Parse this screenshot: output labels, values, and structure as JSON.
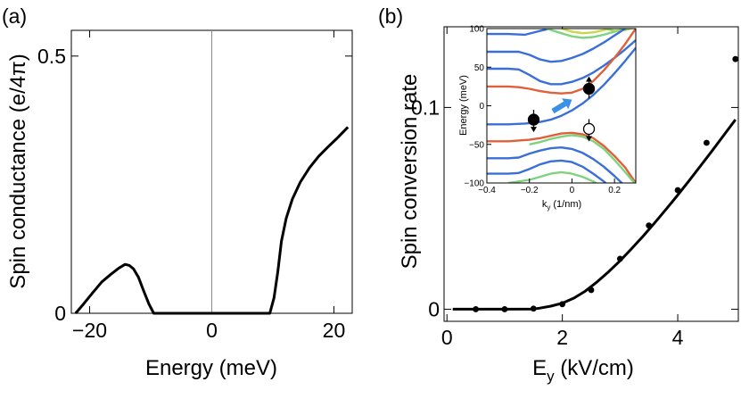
{
  "panels": {
    "a": {
      "label": "(a)"
    },
    "b": {
      "label": "(b)"
    }
  },
  "chart_data": [
    {
      "id": "a",
      "type": "line",
      "xlabel": "Energy (meV)",
      "ylabel": "Spin conductance (e/4π)",
      "xlim": [
        -23,
        23
      ],
      "ylim": [
        0,
        0.55
      ],
      "xticks": [
        {
          "v": -20,
          "label": "−20"
        },
        {
          "v": 0,
          "label": "0"
        },
        {
          "v": 20,
          "label": "20"
        }
      ],
      "yticks": [
        {
          "v": 0,
          "label": "0"
        },
        {
          "v": 0.5,
          "label": "0.5"
        }
      ],
      "vline": 0,
      "series": [
        {
          "name": "spin conductance",
          "x": [
            -22.3,
            -21,
            -19.5,
            -18,
            -16.5,
            -15.2,
            -14.2,
            -13.5,
            -12.8,
            -12.0,
            -11.2,
            -10.3,
            -9.5,
            0,
            9.5,
            10.2,
            10.8,
            11.4,
            12.2,
            13.2,
            14.5,
            16,
            17.5,
            19,
            20.5,
            22.3
          ],
          "y": [
            0,
            0.018,
            0.04,
            0.061,
            0.076,
            0.088,
            0.095,
            0.093,
            0.086,
            0.07,
            0.045,
            0.018,
            0,
            0,
            0,
            0.03,
            0.08,
            0.14,
            0.185,
            0.222,
            0.255,
            0.283,
            0.305,
            0.323,
            0.34,
            0.362
          ]
        }
      ]
    },
    {
      "id": "b",
      "type": "scatter",
      "xlabel": "E",
      "xlabel_sub": "y",
      "xlabel_unit": " (kV/cm)",
      "ylabel": "Spin conversion rate",
      "xlim": [
        -0.05,
        5.05
      ],
      "ylim": [
        -0.006,
        0.14
      ],
      "xticks": [
        {
          "v": 0,
          "label": "0"
        },
        {
          "v": 2,
          "label": "2"
        },
        {
          "v": 4,
          "label": "4"
        }
      ],
      "yticks": [
        {
          "v": 0,
          "label": "0"
        },
        {
          "v": 0.1,
          "label": "0.1"
        }
      ],
      "series": [
        {
          "name": "data points",
          "x": [
            0.5,
            1.0,
            1.5,
            2.0,
            2.5,
            3.0,
            3.5,
            4.0,
            4.5,
            5.0
          ],
          "y": [
            0.0,
            0.0,
            0.0003,
            0.0025,
            0.0095,
            0.025,
            0.0415,
            0.059,
            0.0825,
            0.124
          ]
        },
        {
          "name": "fit curve",
          "x": [
            0.1,
            0.5,
            1.0,
            1.5,
            1.6,
            1.8,
            2.0,
            2.2,
            2.4,
            2.6,
            2.8,
            3.0,
            3.2,
            3.4,
            3.6,
            3.8,
            4.0,
            4.2,
            4.4,
            4.6,
            4.8,
            5.0
          ],
          "y": [
            0,
            0,
            0,
            0.0001,
            0.0005,
            0.0015,
            0.003,
            0.0055,
            0.009,
            0.0135,
            0.0185,
            0.024,
            0.03,
            0.0362,
            0.0428,
            0.0496,
            0.0566,
            0.0638,
            0.0712,
            0.0787,
            0.0863,
            0.094
          ]
        }
      ]
    },
    {
      "id": "b-inset",
      "type": "line",
      "xlabel": "k",
      "xlabel_sub": "y",
      "xlabel_unit": " (1/nm)",
      "ylabel": "Energy (meV)",
      "xlim": [
        -0.4,
        0.3
      ],
      "ylim": [
        -100,
        100
      ],
      "xticks": [
        {
          "v": -0.4,
          "label": "−0.4"
        },
        {
          "v": -0.2,
          "label": "−0.2"
        },
        {
          "v": 0,
          "label": "0"
        },
        {
          "v": 0.2,
          "label": "0.2"
        }
      ],
      "yticks": [
        {
          "v": -100,
          "label": "−100"
        },
        {
          "v": -50,
          "label": "−50"
        },
        {
          "v": 0,
          "label": "0"
        },
        {
          "v": 50,
          "label": "50"
        },
        {
          "v": 100,
          "label": "100"
        }
      ],
      "annotations": [
        {
          "kind": "filled-circle",
          "k": 0.08,
          "E": 22,
          "spin": "up"
        },
        {
          "kind": "filled-circle",
          "k": -0.18,
          "E": -18,
          "spin": "down"
        },
        {
          "kind": "open-circle",
          "k": 0.08,
          "E": -30,
          "spin": "down"
        },
        {
          "kind": "arrow",
          "from_k": -0.09,
          "from_E": -7,
          "to_k": 0.0,
          "to_E": 8
        }
      ],
      "bands": [
        {
          "color": "#3b6fd8",
          "x": [
            -0.4,
            -0.3,
            -0.22,
            -0.15,
            -0.1,
            -0.05,
            0.0
          ],
          "y": [
            93,
            93,
            92,
            97,
            100,
            104,
            108
          ]
        },
        {
          "color": "#7fd27f",
          "x": [
            -0.12,
            -0.05,
            0.0,
            0.05,
            0.1,
            0.15,
            0.2,
            0.25,
            0.3
          ],
          "y": [
            100,
            94,
            90,
            88,
            89,
            92,
            96,
            100,
            104
          ]
        },
        {
          "color": "#c7d94a",
          "x": [
            -0.05,
            0.0,
            0.05,
            0.1,
            0.15,
            0.2,
            0.25,
            0.3
          ],
          "y": [
            100,
            96,
            94,
            95,
            98,
            102,
            106,
            110
          ]
        },
        {
          "color": "#9fd95a",
          "x": [
            0.15,
            0.2,
            0.25,
            0.3
          ],
          "y": [
            100,
            97,
            98,
            102
          ]
        },
        {
          "color": "#3b6fd8",
          "x": [
            -0.4,
            -0.3,
            -0.25,
            -0.2,
            -0.15,
            -0.1,
            -0.05,
            0.0,
            0.05,
            0.1,
            0.15,
            0.2,
            0.25,
            0.3
          ],
          "y": [
            70,
            70,
            70,
            66,
            60,
            57,
            58,
            62,
            67,
            74,
            82,
            91,
            100,
            108
          ]
        },
        {
          "color": "#3b6fd8",
          "x": [
            -0.4,
            -0.3,
            -0.25,
            -0.2,
            -0.15,
            -0.1,
            -0.05,
            0.0,
            0.05,
            0.1,
            0.15,
            0.2,
            0.25,
            0.3
          ],
          "y": [
            48,
            48,
            47,
            40,
            32,
            28,
            28,
            31,
            36,
            43,
            52,
            62,
            73,
            85
          ]
        },
        {
          "color": "#e0603a",
          "x": [
            -0.4,
            -0.3,
            -0.25,
            -0.2,
            -0.15,
            -0.1,
            -0.05,
            0.0,
            0.05,
            0.1,
            0.15,
            0.2,
            0.25,
            0.3
          ],
          "y": [
            25,
            25,
            24,
            22,
            19,
            17,
            16,
            17,
            22,
            32,
            46,
            62,
            80,
            100
          ]
        },
        {
          "color": "#3b6fd8",
          "x": [
            -0.4,
            -0.3,
            -0.22,
            -0.15,
            -0.1,
            -0.05,
            0.0,
            0.05,
            0.1,
            0.15,
            0.2,
            0.25,
            0.3
          ],
          "y": [
            -24,
            -24,
            -23,
            -21,
            -18,
            -13,
            -6,
            3,
            14,
            27,
            42,
            58,
            75
          ]
        },
        {
          "color": "#e0603a",
          "x": [
            -0.4,
            -0.3,
            -0.25,
            -0.2,
            -0.15,
            -0.1,
            -0.05,
            0.0,
            0.05,
            0.1,
            0.15,
            0.2,
            0.25,
            0.3
          ],
          "y": [
            -46,
            -46,
            -45,
            -44,
            -42,
            -39,
            -36,
            -35,
            -37,
            -42,
            -52,
            -65,
            -80,
            -100
          ]
        },
        {
          "color": "#7fd27f",
          "x": [
            -0.2,
            -0.15,
            -0.1,
            -0.05,
            0.0,
            0.05,
            0.1,
            0.15,
            0.2,
            0.25,
            0.3
          ],
          "y": [
            -50,
            -47,
            -43,
            -40,
            -38,
            -40,
            -46,
            -56,
            -70,
            -86,
            -102
          ]
        },
        {
          "color": "#3b6fd8",
          "x": [
            -0.4,
            -0.3,
            -0.25,
            -0.2,
            -0.15,
            -0.1,
            -0.05,
            0.0,
            0.05,
            0.1,
            0.15,
            0.2,
            0.25,
            0.3
          ],
          "y": [
            -68,
            -68,
            -67,
            -62,
            -58,
            -55,
            -54,
            -56,
            -61,
            -69,
            -79,
            -91,
            -104,
            -118
          ]
        },
        {
          "color": "#3b6fd8",
          "x": [
            -0.4,
            -0.3,
            -0.25,
            -0.2,
            -0.15,
            -0.1,
            -0.05,
            0.0,
            0.05,
            0.1,
            0.15,
            0.2,
            0.25
          ],
          "y": [
            -88,
            -88,
            -87,
            -82,
            -76,
            -72,
            -71,
            -73,
            -79,
            -88,
            -98,
            -110,
            -122
          ]
        },
        {
          "color": "#7fd27f",
          "x": [
            -0.3,
            -0.2,
            -0.15,
            -0.1,
            -0.05,
            0.0,
            0.05,
            0.1,
            0.15,
            0.2
          ],
          "y": [
            -100,
            -96,
            -92,
            -88,
            -86,
            -88,
            -92,
            -98,
            -106,
            -114
          ]
        }
      ]
    }
  ]
}
